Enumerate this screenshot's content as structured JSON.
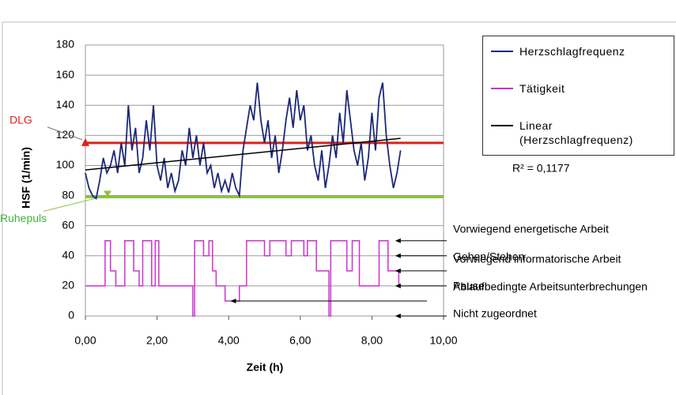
{
  "chart_data": {
    "type": "line",
    "x_label": "Zeit (h)",
    "y_label": "HSF (1/min)",
    "xlim": [
      0,
      10
    ],
    "xticks": [
      {
        "value": 0,
        "label": "0,00"
      },
      {
        "value": 2,
        "label": "2,00"
      },
      {
        "value": 4,
        "label": "4,00"
      },
      {
        "value": 6,
        "label": "6,00"
      },
      {
        "value": 8,
        "label": "8,00"
      },
      {
        "value": 10,
        "label": "10,00"
      }
    ],
    "ylim": [
      0,
      180
    ],
    "yticks": [
      0,
      20,
      40,
      60,
      80,
      100,
      120,
      140,
      160,
      180
    ],
    "grid": true,
    "series": [
      {
        "name": "Herzschlagfrequenz",
        "color": "#1c2878",
        "x": [
          0,
          0.1,
          0.2,
          0.3,
          0.4,
          0.5,
          0.6,
          0.7,
          0.8,
          0.9,
          1,
          1.1,
          1.2,
          1.3,
          1.4,
          1.5,
          1.6,
          1.7,
          1.8,
          1.9,
          2,
          2.1,
          2.2,
          2.3,
          2.4,
          2.5,
          2.6,
          2.7,
          2.8,
          2.9,
          3,
          3.1,
          3.2,
          3.3,
          3.4,
          3.5,
          3.6,
          3.7,
          3.8,
          3.9,
          4,
          4.1,
          4.2,
          4.3,
          4.4,
          4.5,
          4.6,
          4.7,
          4.8,
          4.9,
          5,
          5.1,
          5.2,
          5.3,
          5.4,
          5.5,
          5.6,
          5.7,
          5.8,
          5.9,
          6,
          6.1,
          6.2,
          6.3,
          6.4,
          6.5,
          6.6,
          6.7,
          6.8,
          6.9,
          7,
          7.1,
          7.2,
          7.3,
          7.4,
          7.5,
          7.6,
          7.7,
          7.8,
          7.9,
          8,
          8.1,
          8.2,
          8.3,
          8.4,
          8.5,
          8.6,
          8.7,
          8.8
        ],
        "values": [
          95,
          85,
          80,
          78,
          90,
          105,
          95,
          100,
          110,
          95,
          115,
          100,
          140,
          110,
          125,
          95,
          105,
          130,
          110,
          140,
          100,
          90,
          105,
          85,
          95,
          83,
          90,
          110,
          100,
          125,
          105,
          120,
          100,
          115,
          95,
          100,
          85,
          95,
          83,
          90,
          82,
          95,
          85,
          80,
          110,
          125,
          140,
          130,
          155,
          130,
          115,
          130,
          105,
          120,
          95,
          110,
          130,
          145,
          125,
          150,
          130,
          140,
          110,
          120,
          100,
          90,
          110,
          85,
          100,
          120,
          105,
          135,
          115,
          150,
          130,
          110,
          100,
          115,
          90,
          105,
          135,
          110,
          145,
          155,
          120,
          100,
          85,
          95,
          110
        ]
      },
      {
        "name": "Tätigkeit",
        "color": "#cc33cc",
        "x": [
          0,
          0.55,
          0.55,
          0.7,
          0.7,
          0.85,
          0.85,
          1.1,
          1.1,
          1.35,
          1.35,
          1.5,
          1.5,
          1.6,
          1.6,
          1.85,
          1.85,
          1.95,
          1.95,
          2.05,
          2.05,
          3,
          3,
          3.05,
          3.05,
          3.3,
          3.3,
          3.45,
          3.45,
          3.55,
          3.55,
          3.65,
          3.65,
          3.9,
          3.9,
          4.3,
          4.3,
          4.5,
          4.5,
          5,
          5,
          5.15,
          5.15,
          5.6,
          5.6,
          5.75,
          5.75,
          6.1,
          6.1,
          6.2,
          6.2,
          6.45,
          6.45,
          6.8,
          6.8,
          6.85,
          6.85,
          7.3,
          7.3,
          7.45,
          7.45,
          7.65,
          7.65,
          8.2,
          8.2,
          8.45,
          8.45,
          8.75,
          8.75,
          8.8
        ],
        "values": [
          20,
          20,
          50,
          50,
          30,
          30,
          20,
          20,
          50,
          50,
          30,
          30,
          20,
          20,
          50,
          50,
          20,
          20,
          50,
          50,
          20,
          20,
          0,
          0,
          50,
          50,
          40,
          40,
          50,
          50,
          30,
          30,
          20,
          20,
          10,
          10,
          20,
          20,
          50,
          50,
          40,
          40,
          50,
          50,
          40,
          40,
          50,
          50,
          40,
          40,
          50,
          50,
          30,
          30,
          0,
          0,
          50,
          50,
          30,
          30,
          50,
          50,
          20,
          20,
          50,
          50,
          30,
          30,
          20,
          20
        ]
      },
      {
        "name": "Linear (Herzschlagfrequenz)",
        "color": "#000000",
        "x": [
          0,
          8.8
        ],
        "values": [
          97,
          118
        ]
      }
    ],
    "reference_lines": [
      {
        "label": "DLG",
        "value": 115,
        "color": "#e0201c"
      },
      {
        "label": "Ruhepuls",
        "value": 79,
        "color": "#8cc43c"
      }
    ],
    "r_squared_label": "R² = 0,1177",
    "activity_levels": [
      {
        "label": "Vorwiegend energetische Arbeit",
        "value": 50,
        "arrow_x": 8.65
      },
      {
        "label": "Gehen/Stehen",
        "value": 40,
        "arrow_x": 8.65
      },
      {
        "label": "Vorwiegend informatorische Arbeit",
        "value": 30,
        "arrow_x": 8.65
      },
      {
        "label": "Ablaufbedingte Arbeitsunterbrechungen",
        "value": 20,
        "arrow_x": 8.65
      },
      {
        "label": "Pause",
        "value": 10,
        "arrow_x": 4.05
      },
      {
        "label": "Nicht zugeordnet",
        "value": 0,
        "arrow_x": 8.65
      }
    ]
  }
}
